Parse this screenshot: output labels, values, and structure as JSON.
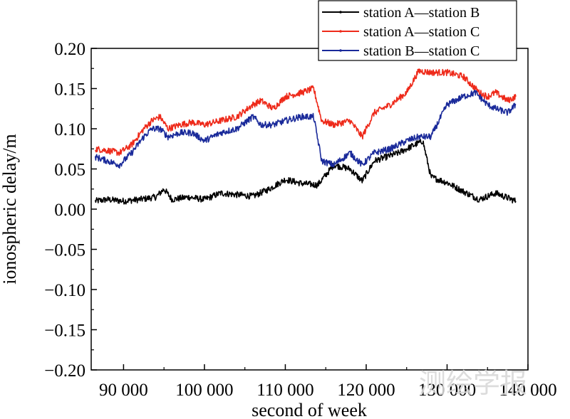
{
  "chart_data": {
    "type": "line",
    "xlabel": "second of week",
    "ylabel": "ionospheric delay/m",
    "xlim": [
      86000,
      140000
    ],
    "ylim": [
      -0.2,
      0.2
    ],
    "x_ticks": [
      90000,
      100000,
      110000,
      120000,
      130000,
      140000
    ],
    "x_tick_labels": [
      "90 000",
      "100 000",
      "110 000",
      "120 000",
      "130 000",
      "140 000"
    ],
    "y_ticks": [
      -0.2,
      -0.15,
      -0.1,
      -0.05,
      0.0,
      0.05,
      0.1,
      0.15,
      0.2
    ],
    "y_tick_labels": [
      "−0.20",
      "−0.15",
      "−0.10",
      "−0.05",
      "0.00",
      "0.05",
      "0.10",
      "0.15",
      "0.20"
    ],
    "grid": false,
    "legend_position": "top-right",
    "series": [
      {
        "name": "station A—station B",
        "color": "#000000",
        "x": [
          86500,
          88000,
          90000,
          92000,
          94000,
          95000,
          96000,
          98000,
          100000,
          102000,
          104000,
          106000,
          108000,
          110000,
          112000,
          114000,
          116000,
          118000,
          119500,
          121000,
          124000,
          126000,
          127000,
          128000,
          130000,
          132000,
          134000,
          136000,
          138500
        ],
        "y": [
          0.01,
          0.012,
          0.01,
          0.012,
          0.015,
          0.025,
          0.012,
          0.015,
          0.012,
          0.02,
          0.018,
          0.016,
          0.025,
          0.037,
          0.032,
          0.03,
          0.055,
          0.05,
          0.035,
          0.06,
          0.07,
          0.08,
          0.085,
          0.04,
          0.033,
          0.022,
          0.012,
          0.02,
          0.01
        ]
      },
      {
        "name": "station A—station C",
        "color": "#ee2a1a",
        "x": [
          86500,
          88000,
          89500,
          91000,
          92500,
          93500,
          94500,
          95500,
          97000,
          98500,
          100000,
          102000,
          104000,
          106000,
          107000,
          108500,
          110000,
          112000,
          113500,
          114500,
          116000,
          118000,
          119500,
          121000,
          123000,
          125000,
          126500,
          128000,
          130000,
          132000,
          134000,
          135000,
          136000,
          137500,
          138500
        ],
        "y": [
          0.075,
          0.073,
          0.07,
          0.08,
          0.1,
          0.11,
          0.115,
          0.1,
          0.105,
          0.108,
          0.105,
          0.11,
          0.115,
          0.13,
          0.135,
          0.125,
          0.14,
          0.145,
          0.15,
          0.11,
          0.105,
          0.11,
          0.09,
          0.12,
          0.13,
          0.145,
          0.172,
          0.17,
          0.17,
          0.165,
          0.145,
          0.14,
          0.145,
          0.135,
          0.14
        ]
      },
      {
        "name": "station B—station C",
        "color": "#1a2a9a",
        "x": [
          86500,
          88000,
          89500,
          91000,
          92500,
          93500,
          94500,
          95500,
          97000,
          98500,
          100000,
          102000,
          104000,
          106000,
          107000,
          108500,
          110000,
          112000,
          113500,
          114500,
          116000,
          118000,
          119500,
          121000,
          123000,
          125000,
          126500,
          128000,
          130000,
          132000,
          133500,
          135000,
          136000,
          137500,
          138500
        ],
        "y": [
          0.065,
          0.06,
          0.055,
          0.07,
          0.09,
          0.1,
          0.1,
          0.09,
          0.095,
          0.095,
          0.085,
          0.095,
          0.1,
          0.115,
          0.105,
          0.105,
          0.11,
          0.115,
          0.115,
          0.06,
          0.055,
          0.07,
          0.055,
          0.07,
          0.075,
          0.085,
          0.09,
          0.09,
          0.13,
          0.14,
          0.145,
          0.13,
          0.125,
          0.12,
          0.13
        ]
      }
    ]
  },
  "watermark": "测绘学报"
}
